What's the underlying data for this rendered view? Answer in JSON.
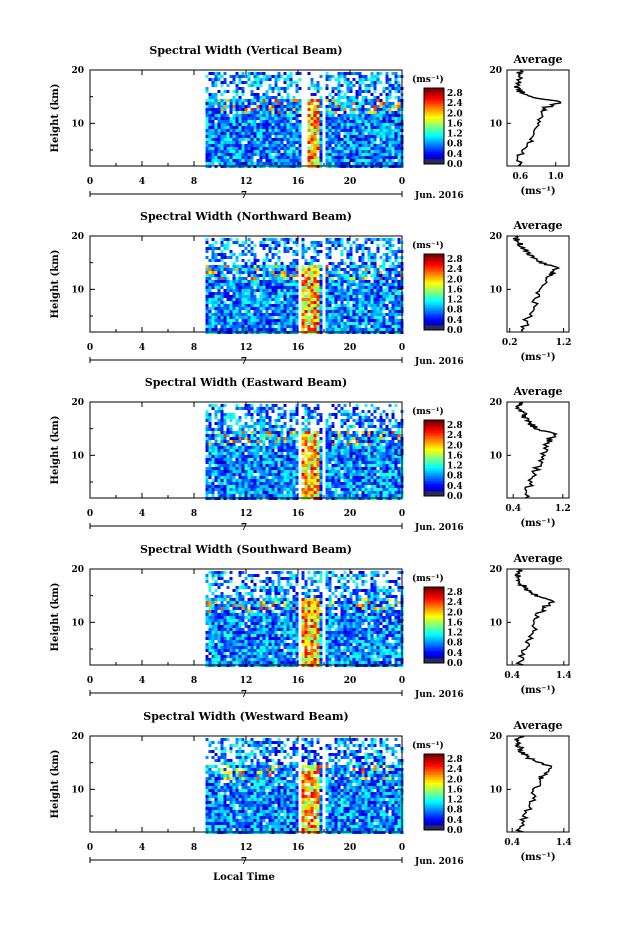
{
  "figure": {
    "x_label": "Local Time",
    "date_label": "Jun. 2016",
    "day_label": "7"
  },
  "chart_data": [
    {
      "type": "heatmap",
      "title": "Spectral Width (Vertical Beam)",
      "ylabel": "Height (km)",
      "xlim": [
        0,
        24
      ],
      "ylim": [
        2,
        20
      ],
      "x_ticks": [
        "0",
        "4",
        "8",
        "12",
        "16",
        "20",
        "0"
      ],
      "y_ticks": [
        "10",
        "20"
      ],
      "colorbar": {
        "unit": "(ms⁻¹)",
        "ticks": [
          "0.0",
          "0.4",
          "0.8",
          "1.2",
          "1.6",
          "2.0",
          "2.4",
          "2.8"
        ],
        "range": [
          0,
          3.0
        ]
      },
      "data_start_hour": 8.9,
      "gaps": [
        [
          16.2,
          16.6
        ],
        [
          17.7,
          18.0
        ]
      ],
      "high_band": [
        16.6,
        17.6
      ]
    },
    {
      "type": "line",
      "title": "Average",
      "xlabel": "(ms⁻¹)",
      "ylabel": "Height (km)",
      "x_ticks": [
        "0.6",
        "1.0"
      ],
      "y_ticks": [
        "10",
        "20"
      ],
      "xlim": [
        0.45,
        1.15
      ],
      "ylim": [
        2,
        20
      ],
      "profile": {
        "height": [
          2,
          4,
          6,
          8,
          10,
          12,
          13,
          14,
          15,
          16,
          17,
          18,
          19,
          20
        ],
        "value": [
          0.6,
          0.6,
          0.7,
          0.75,
          0.8,
          0.82,
          0.9,
          1.05,
          0.7,
          0.6,
          0.55,
          0.6,
          0.58,
          0.6
        ]
      }
    },
    {
      "type": "heatmap",
      "title": "Spectral Width (Northward Beam)",
      "ylabel": "Height (km)",
      "xlim": [
        0,
        24
      ],
      "ylim": [
        2,
        20
      ],
      "x_ticks": [
        "0",
        "4",
        "8",
        "12",
        "16",
        "20",
        "0"
      ],
      "y_ticks": [
        "10",
        "20"
      ],
      "colorbar": {
        "unit": "(ms⁻¹)",
        "ticks": [
          "0.0",
          "0.4",
          "0.8",
          "1.2",
          "1.6",
          "2.0",
          "2.4",
          "2.8"
        ],
        "range": [
          0,
          3.0
        ]
      },
      "data_start_hour": 8.9,
      "gaps": [
        [
          15.9,
          16.2
        ],
        [
          17.7,
          18.0
        ]
      ],
      "high_band": [
        16.2,
        17.6
      ]
    },
    {
      "type": "line",
      "title": "Average",
      "xlabel": "(ms⁻¹)",
      "ylabel": "Height (km)",
      "x_ticks": [
        "0.2",
        "1.2"
      ],
      "y_ticks": [
        "10",
        "20"
      ],
      "xlim": [
        0.15,
        1.3
      ],
      "ylim": [
        2,
        20
      ],
      "profile": {
        "height": [
          2,
          4,
          6,
          8,
          10,
          12,
          13,
          14,
          15,
          16,
          17,
          18,
          19,
          20
        ],
        "value": [
          0.45,
          0.5,
          0.6,
          0.7,
          0.75,
          0.9,
          1.0,
          1.1,
          0.8,
          0.6,
          0.5,
          0.45,
          0.35,
          0.3
        ]
      }
    },
    {
      "type": "heatmap",
      "title": "Spectral Width (Eastward Beam)",
      "ylabel": "Height (km)",
      "xlim": [
        0,
        24
      ],
      "ylim": [
        2,
        20
      ],
      "x_ticks": [
        "0",
        "4",
        "8",
        "12",
        "16",
        "20",
        "0"
      ],
      "y_ticks": [
        "10",
        "20"
      ],
      "colorbar": {
        "unit": "(ms⁻¹)",
        "ticks": [
          "0.0",
          "0.4",
          "0.8",
          "1.2",
          "1.6",
          "2.0",
          "2.4",
          "2.8"
        ],
        "range": [
          0,
          3.0
        ]
      },
      "data_start_hour": 8.9,
      "gaps": [
        [
          15.9,
          16.2
        ],
        [
          17.7,
          18.0
        ]
      ],
      "high_band": [
        16.2,
        17.6
      ]
    },
    {
      "type": "line",
      "title": "Average",
      "xlabel": "(ms⁻¹)",
      "ylabel": "Height (km)",
      "x_ticks": [
        "0.4",
        "1.2"
      ],
      "y_ticks": [
        "10",
        "20"
      ],
      "xlim": [
        0.3,
        1.3
      ],
      "ylim": [
        2,
        20
      ],
      "profile": {
        "height": [
          2,
          4,
          6,
          8,
          10,
          12,
          13,
          14,
          15,
          16,
          17,
          18,
          19,
          20
        ],
        "value": [
          0.6,
          0.65,
          0.7,
          0.8,
          0.85,
          0.95,
          1.0,
          1.05,
          0.8,
          0.65,
          0.6,
          0.55,
          0.5,
          0.5
        ]
      }
    },
    {
      "type": "heatmap",
      "title": "Spectral Width (Southward Beam)",
      "ylabel": "Height (km)",
      "xlim": [
        0,
        24
      ],
      "ylim": [
        2,
        20
      ],
      "x_ticks": [
        "0",
        "4",
        "8",
        "12",
        "16",
        "20",
        "0"
      ],
      "y_ticks": [
        "10",
        "20"
      ],
      "colorbar": {
        "unit": "(ms⁻¹)",
        "ticks": [
          "0.0",
          "0.4",
          "0.8",
          "1.2",
          "1.6",
          "2.0",
          "2.4",
          "2.8"
        ],
        "range": [
          0,
          3.0
        ]
      },
      "data_start_hour": 8.9,
      "gaps": [
        [
          15.9,
          16.2
        ],
        [
          17.7,
          18.0
        ]
      ],
      "high_band": [
        16.2,
        17.6
      ]
    },
    {
      "type": "line",
      "title": "Average",
      "xlabel": "(ms⁻¹)",
      "ylabel": "Height (km)",
      "x_ticks": [
        "0.4",
        "1.4"
      ],
      "y_ticks": [
        "10",
        "20"
      ],
      "xlim": [
        0.3,
        1.5
      ],
      "ylim": [
        2,
        20
      ],
      "profile": {
        "height": [
          2,
          4,
          6,
          8,
          10,
          12,
          13,
          14,
          15,
          16,
          17,
          18,
          19,
          20
        ],
        "value": [
          0.55,
          0.6,
          0.7,
          0.8,
          0.85,
          0.95,
          1.05,
          1.2,
          0.9,
          0.7,
          0.6,
          0.5,
          0.5,
          0.55
        ]
      }
    },
    {
      "type": "heatmap",
      "title": "Spectral Width (Westward Beam)",
      "ylabel": "Height (km)",
      "xlim": [
        0,
        24
      ],
      "ylim": [
        2,
        20
      ],
      "x_ticks": [
        "0",
        "4",
        "8",
        "12",
        "16",
        "20",
        "0"
      ],
      "y_ticks": [
        "10",
        "20"
      ],
      "colorbar": {
        "unit": "(ms⁻¹)",
        "ticks": [
          "0.0",
          "0.4",
          "0.8",
          "1.2",
          "1.6",
          "2.0",
          "2.4",
          "2.8"
        ],
        "range": [
          0,
          3.0
        ]
      },
      "data_start_hour": 8.9,
      "gaps": [
        [
          15.9,
          16.2
        ],
        [
          17.7,
          18.0
        ]
      ],
      "high_band": [
        16.2,
        17.6
      ]
    },
    {
      "type": "line",
      "title": "Average",
      "xlabel": "(ms⁻¹)",
      "ylabel": "Height (km)",
      "x_ticks": [
        "0.4",
        "1.4"
      ],
      "y_ticks": [
        "10",
        "20"
      ],
      "xlim": [
        0.3,
        1.5
      ],
      "ylim": [
        2,
        20
      ],
      "profile": {
        "height": [
          2,
          4,
          6,
          8,
          10,
          12,
          13,
          14,
          15,
          16,
          17,
          18,
          19,
          20
        ],
        "value": [
          0.55,
          0.6,
          0.7,
          0.8,
          0.85,
          0.95,
          1.05,
          1.2,
          0.9,
          0.7,
          0.6,
          0.55,
          0.5,
          0.55
        ]
      }
    }
  ]
}
